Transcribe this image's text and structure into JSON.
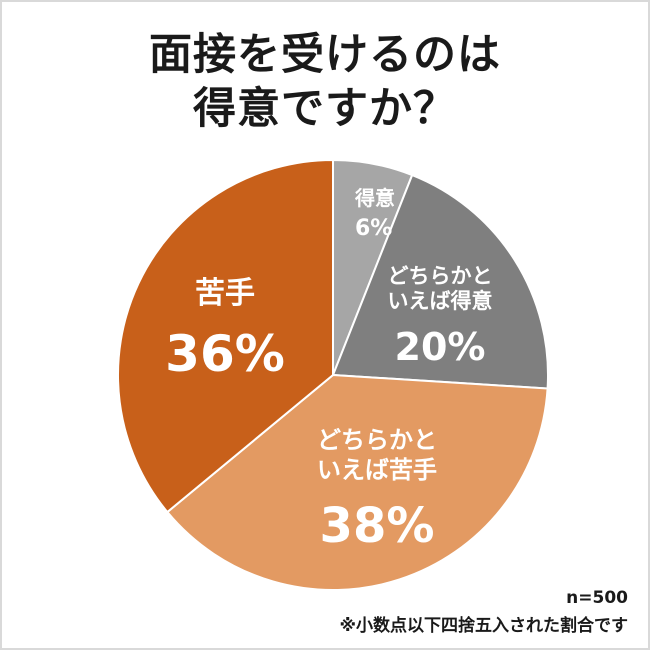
{
  "title_lines": [
    "面接を受けるのは",
    "得意ですか？"
  ],
  "chart_data": {
    "type": "pie",
    "title": "面接を受けるのは得意ですか？",
    "slices": [
      {
        "label": "得意",
        "label_lines": [
          "得意"
        ],
        "value": 6,
        "display": "6%",
        "color": "#a6a6a6"
      },
      {
        "label": "どちらかといえば得意",
        "label_lines": [
          "どちらかと",
          "いえば得意"
        ],
        "value": 20,
        "display": "20%",
        "color": "#7f7f7f"
      },
      {
        "label": "どちらかといえば苦手",
        "label_lines": [
          "どちらかと",
          "いえば苦手"
        ],
        "value": 38,
        "display": "38%",
        "color": "#e39a62"
      },
      {
        "label": "苦手",
        "label_lines": [
          "苦手"
        ],
        "value": 36,
        "display": "36%",
        "color": "#c8601a"
      }
    ]
  },
  "footnotes": {
    "sample_size": "n=500",
    "rounding_note": "※小数点以下四捨五入された割合です"
  }
}
